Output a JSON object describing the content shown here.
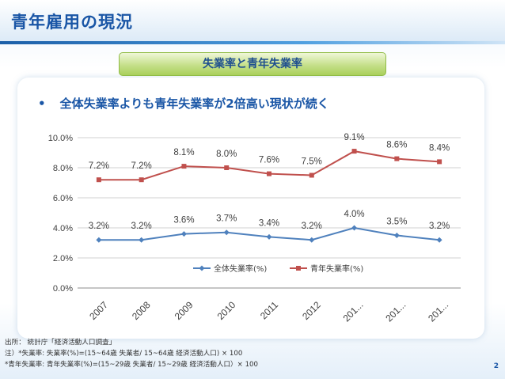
{
  "slide": {
    "title": "青年雇用の現況",
    "banner": "失業率と青年失業率",
    "bullet_marker": "•",
    "bullet": "全体失業率よりも青年失業率が2倍高い現状が続く",
    "page_number": "2",
    "notes": [
      "出所： 統計庁「経済活動人口調査」",
      "注）*失業率: 失業率(%)=(15~64歳  失業者/ 15~64歳 経済活動人口) × 100",
      "    *青年失業率: 青年失業率(%)=(15~29歳  失業者/ 15~29歳  経済活動人口）× 100"
    ]
  },
  "chart_data": {
    "type": "line",
    "categories": [
      "2007",
      "2008",
      "2009",
      "2010",
      "2011",
      "2012",
      "201...",
      "201...",
      "201..."
    ],
    "y_tick_labels": [
      "0.0%",
      "2.0%",
      "4.0%",
      "6.0%",
      "8.0%",
      "10.0%"
    ],
    "ylim": [
      0,
      10
    ],
    "grid": true,
    "legend_position": "center-inside-plot",
    "series": [
      {
        "name": "全体失業率(%)",
        "values": [
          3.2,
          3.2,
          3.6,
          3.7,
          3.4,
          3.2,
          4.0,
          3.5,
          3.2
        ],
        "labels": [
          "3.2%",
          "3.2%",
          "3.6%",
          "3.7%",
          "3.4%",
          "3.2%",
          "4.0%",
          "3.5%",
          "3.2%"
        ],
        "color": "#4f81bd",
        "marker": "diamond"
      },
      {
        "name": "青年失業率(%)",
        "values": [
          7.2,
          7.2,
          8.1,
          8.0,
          7.6,
          7.5,
          9.1,
          8.6,
          8.4
        ],
        "labels": [
          "7.2%",
          "7.2%",
          "8.1%",
          "8.0%",
          "7.6%",
          "7.5%",
          "9.1%",
          "8.6%",
          "8.4%"
        ],
        "color": "#c0504d",
        "marker": "square"
      }
    ]
  }
}
